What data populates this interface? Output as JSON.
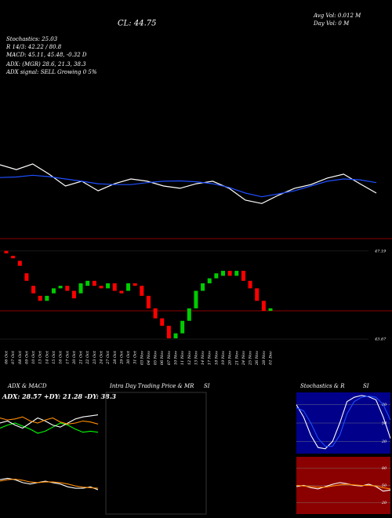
{
  "chart_data": [
    {
      "type": "line",
      "annotations": [
        "CL: 44.75",
        "Avg Vol: 0.012 M",
        "Day Vol: 0 M",
        "Stochastics: 25.03",
        "R 14/3: 42.22 / 80.8",
        "MACD: 45.11, 45.48, -0.32 D",
        "ADX: (MGR) 28.6, 21.3, 38.3",
        "ADX signal: SELL Growing 0 5%"
      ],
      "ylim": [
        43,
        48
      ],
      "series": [
        {
          "color": "#ffffff",
          "values": [
            45.5,
            45.33,
            45.53,
            45.17,
            44.75,
            44.92,
            44.58,
            44.83,
            45,
            44.92,
            44.75,
            44.67,
            44.83,
            44.92,
            44.67,
            44.25,
            44.13,
            44.42,
            44.67,
            44.8,
            45.03,
            45.17,
            44.83,
            44.5
          ]
        },
        {
          "color": "#1f4fff",
          "values": [
            45.05,
            45.07,
            45.13,
            45.08,
            45,
            44.92,
            44.83,
            44.8,
            44.8,
            44.87,
            44.92,
            44.93,
            44.9,
            44.83,
            44.7,
            44.5,
            44.37,
            44.47,
            44.58,
            44.75,
            44.92,
            45,
            44.97,
            44.87
          ]
        }
      ]
    },
    {
      "type": "candlestick",
      "categories": [
        "06 Oct",
        "07 Oct",
        "08 Oct",
        "09 Oct",
        "10 Oct",
        "13 Oct",
        "14 Oct",
        "15 Oct",
        "16 Oct",
        "17 Oct",
        "20 Oct",
        "21 Oct",
        "22 Oct",
        "23 Oct",
        "24 Oct",
        "27 Oct",
        "28 Oct",
        "29 Oct",
        "30 Oct",
        "31 Oct",
        "03 Nov",
        "04 Nov",
        "05 Nov",
        "06 Nov",
        "07 Nov",
        "10 Nov",
        "11 Nov",
        "12 Nov",
        "13 Nov",
        "14 Nov",
        "17 Nov",
        "18 Nov",
        "19 Nov",
        "20 Nov",
        "21 Nov",
        "24 Nov",
        "25 Nov",
        "26 Nov",
        "28 Nov",
        "01 Dec"
      ],
      "open": [
        47.2,
        47.0,
        46.8,
        46.3,
        45.8,
        45.4,
        45.2,
        45.5,
        45.7,
        45.8,
        45.6,
        45.5,
        45.8,
        46.0,
        45.8,
        45.7,
        45.9,
        45.6,
        45.6,
        45.9,
        45.8,
        45.4,
        44.9,
        44.5,
        44.2,
        43.7,
        43.9,
        44.4,
        44.9,
        45.6,
        45.9,
        46.1,
        46.2,
        46.4,
        46.2,
        46.4,
        46.0,
        45.7,
        45.2,
        44.8
      ],
      "close": [
        47.1,
        46.9,
        46.6,
        46.0,
        45.5,
        45.2,
        45.4,
        45.7,
        45.8,
        45.6,
        45.3,
        45.9,
        46.0,
        45.8,
        45.7,
        45.9,
        45.6,
        45.5,
        45.9,
        45.8,
        45.4,
        44.9,
        44.5,
        44.2,
        43.7,
        43.9,
        44.4,
        44.9,
        45.6,
        45.9,
        46.1,
        46.3,
        46.4,
        46.2,
        46.4,
        46.0,
        45.7,
        45.2,
        44.8,
        44.9
      ],
      "up_color": "#00cc00",
      "down_color": "#ff0000",
      "ylim": [
        43.42,
        47.5
      ],
      "yticks": [
        43.67,
        47.19
      ]
    },
    {
      "type": "line",
      "title": "ADX & MACD",
      "subtitle": "ADX: 28.57 +DY: 21.28 -DY: 38.3",
      "ylim": [
        0,
        60
      ],
      "series": [
        {
          "color": "#00ff00",
          "values": [
            25,
            28,
            30,
            27,
            24,
            20,
            22,
            26,
            30,
            28,
            24,
            21,
            22,
            21
          ]
        },
        {
          "color": "#ffffff",
          "values": [
            30,
            32,
            28,
            25,
            30,
            35,
            32,
            28,
            26,
            30,
            34,
            36,
            37,
            38
          ]
        },
        {
          "color": "#ff8c00",
          "values": [
            35,
            33,
            34,
            36,
            32,
            30,
            33,
            35,
            31,
            29,
            30,
            32,
            31,
            29
          ]
        }
      ]
    },
    {
      "type": "line",
      "ylim": [
        -1,
        1
      ],
      "series": [
        {
          "color": "#ffffff",
          "values": [
            0.2,
            0.25,
            0.2,
            0.1,
            0.05,
            0.1,
            0.15,
            0.1,
            0.05,
            -0.05,
            -0.1,
            -0.1,
            -0.05,
            -0.15
          ]
        },
        {
          "color": "#ff8c00",
          "values": [
            0.15,
            0.2,
            0.22,
            0.18,
            0.12,
            0.1,
            0.12,
            0.12,
            0.1,
            0.05,
            -0.02,
            -0.06,
            -0.08,
            -0.1
          ]
        }
      ]
    },
    {
      "type": "panel",
      "title": "Intra Day Trading Price & MR",
      "subtitle": "SI"
    },
    {
      "type": "line",
      "title": "Stochastics & R",
      "subtitle": "SI",
      "background": "#00008b",
      "ylim": [
        0,
        100
      ],
      "yticks": [
        20,
        50,
        80
      ],
      "series": [
        {
          "color": "#ffffff",
          "values": [
            80,
            60,
            30,
            10,
            8,
            20,
            50,
            85,
            92,
            95,
            93,
            88,
            60,
            25
          ]
        },
        {
          "color": "#1f4fff",
          "values": [
            75,
            70,
            50,
            25,
            12,
            12,
            30,
            65,
            85,
            92,
            94,
            92,
            80,
            55
          ]
        }
      ]
    },
    {
      "type": "line",
      "background": "#8b0000",
      "ylim": [
        0,
        100
      ],
      "yticks": [
        20,
        50,
        80
      ],
      "series": [
        {
          "color": "#ffffff",
          "values": [
            48,
            50,
            46,
            44,
            48,
            52,
            55,
            53,
            50,
            49,
            52,
            48,
            40,
            42
          ]
        },
        {
          "color": "#ff8c00",
          "values": [
            50,
            49,
            48,
            47,
            47,
            49,
            51,
            52,
            51,
            50,
            50,
            49,
            46,
            44
          ]
        }
      ]
    }
  ]
}
